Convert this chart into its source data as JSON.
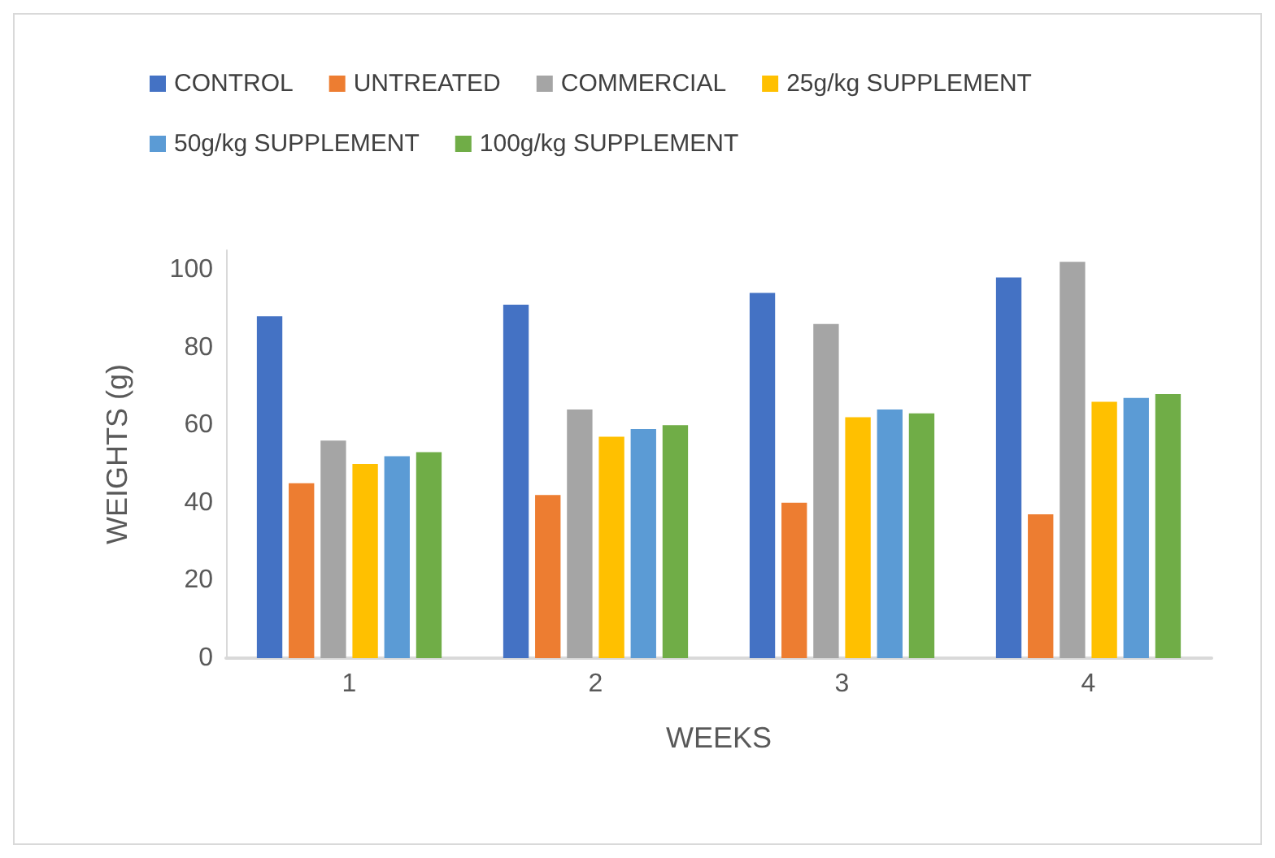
{
  "chart_data": {
    "type": "bar",
    "xlabel": "WEEKS",
    "ylabel": "WEIGHTS (g)",
    "categories": [
      "1",
      "2",
      "3",
      "4"
    ],
    "series": [
      {
        "name": "CONTROL",
        "color": "#4472c4",
        "values": [
          88,
          91,
          94,
          98
        ]
      },
      {
        "name": "UNTREATED",
        "color": "#ed7d31",
        "values": [
          45,
          42,
          40,
          37
        ]
      },
      {
        "name": "COMMERCIAL",
        "color": "#a5a5a5",
        "values": [
          56,
          64,
          86,
          102
        ]
      },
      {
        "name": "25g/kg SUPPLEMENT",
        "color": "#ffc000",
        "values": [
          50,
          57,
          62,
          66
        ]
      },
      {
        "name": "50g/kg SUPPLEMENT",
        "color": "#5b9bd5",
        "values": [
          52,
          59,
          64,
          67
        ]
      },
      {
        "name": "100g/kg SUPPLEMENT",
        "color": "#70ad47",
        "values": [
          53,
          60,
          63,
          68
        ]
      }
    ],
    "ylim": [
      0,
      105
    ],
    "yticks": [
      0,
      20,
      40,
      60,
      80,
      100
    ],
    "grid": false,
    "legend": "top"
  }
}
